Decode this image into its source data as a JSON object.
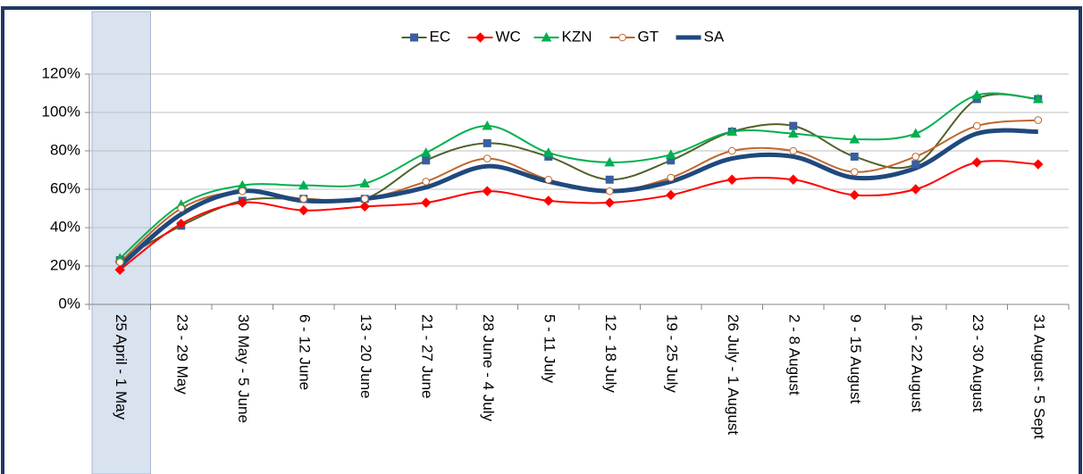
{
  "chart_data": {
    "type": "line",
    "categories": [
      "25 April - 1 May",
      "23 - 29 May",
      "30 May - 5 June",
      "6 - 12 June",
      "13 - 20 June",
      "21 - 27 June",
      "28 June - 4 July",
      "5 - 11 July",
      "12 - 18 July",
      "19 - 25 July",
      "26 July - 1 August",
      "2 - 8 August",
      "9 - 15 August",
      "16 - 22 August",
      "23 - 30 August",
      "31 August - 5 Sept"
    ],
    "series": [
      {
        "name": "EC",
        "color": "#4f6228",
        "marker": "square",
        "marker_color": "#3a5f9e",
        "values": [
          23,
          41,
          54,
          55,
          55,
          75,
          84,
          77,
          65,
          75,
          90,
          93,
          77,
          73,
          107,
          107
        ]
      },
      {
        "name": "WC",
        "color": "#ff0000",
        "marker": "diamond",
        "marker_color": "#ff0000",
        "values": [
          18,
          42,
          53,
          49,
          51,
          53,
          59,
          54,
          53,
          57,
          65,
          65,
          57,
          60,
          74,
          73
        ]
      },
      {
        "name": "KZN",
        "color": "#00b050",
        "marker": "triangle",
        "marker_color": "#00b050",
        "values": [
          24,
          52,
          62,
          62,
          63,
          79,
          93,
          79,
          74,
          78,
          90,
          89,
          86,
          89,
          109,
          107
        ]
      },
      {
        "name": "GT",
        "color": "#c0662d",
        "marker": "circle",
        "marker_color": "#ffffff",
        "values": [
          22,
          50,
          59,
          55,
          55,
          64,
          76,
          65,
          59,
          66,
          80,
          80,
          69,
          77,
          93,
          96
        ]
      },
      {
        "name": "SA",
        "color": "#1f497d",
        "marker": "none",
        "line_width": 5,
        "values": [
          20,
          47,
          59,
          54,
          55,
          61,
          72,
          64,
          59,
          64,
          76,
          77,
          66,
          71,
          89,
          90
        ]
      }
    ],
    "ylim": [
      0,
      120
    ],
    "yticks": [
      {
        "value": 0,
        "label": "0%"
      },
      {
        "value": 20,
        "label": "20%"
      },
      {
        "value": 40,
        "label": "40%"
      },
      {
        "value": 60,
        "label": "60%"
      },
      {
        "value": 80,
        "label": "80%"
      },
      {
        "value": 100,
        "label": "100%"
      },
      {
        "value": 120,
        "label": "120%"
      }
    ],
    "grid": true,
    "smooth": true,
    "legend": "top",
    "highlight_category": 0,
    "highlight_color": "#d9e2ef"
  }
}
